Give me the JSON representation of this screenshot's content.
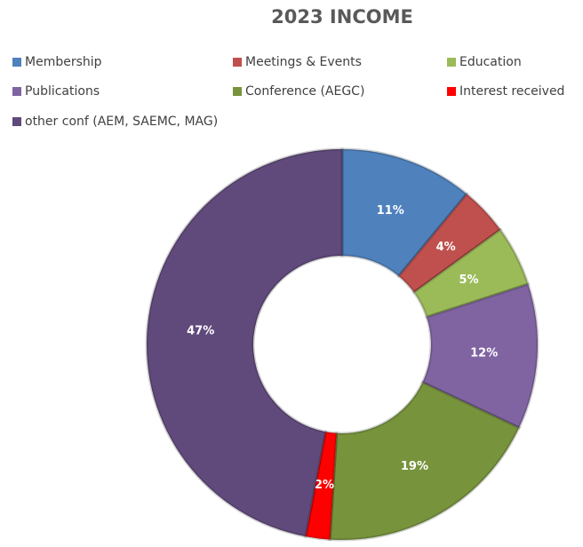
{
  "chart_data": {
    "type": "pie",
    "title": "2023 INCOME",
    "categories": [
      "Membership",
      "Meetings & Events",
      "Education",
      "Publications",
      "Conference (AEGC)",
      "Interest received",
      "other conf (AEM, SAEMC, MAG)"
    ],
    "values": [
      11,
      4,
      5,
      12,
      19,
      2,
      47
    ],
    "value_labels": [
      "11%",
      "4%",
      "5%",
      "12%",
      "19%",
      "2%",
      "47%"
    ],
    "colors": [
      "#4f81bd",
      "#c0504d",
      "#9bbb59",
      "#8064a2",
      "#77933c",
      "#ff0000",
      "#604a7b"
    ],
    "legend": "top"
  }
}
